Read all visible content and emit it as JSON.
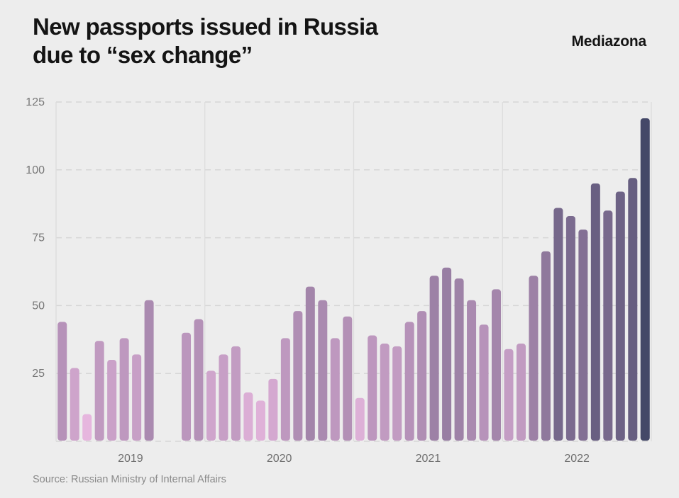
{
  "header": {
    "title_line1": "New passports issued in Russia",
    "title_line2": "due to “sex change”",
    "brand": "Mediazona"
  },
  "footer": {
    "source": "Source: Russian Ministry of Internal Affairs"
  },
  "chart_data": {
    "type": "bar",
    "title": "New passports issued in Russia due to “sex change”",
    "xlabel": "",
    "ylabel": "",
    "ylim": [
      0,
      125
    ],
    "yticks": [
      25,
      50,
      75,
      100,
      125
    ],
    "grid": true,
    "legend": "none",
    "color_scale": {
      "low": "#e6b6de",
      "mid": "#a888ae",
      "high": "#444868"
    },
    "years": [
      "2019",
      "2020",
      "2021",
      "2022"
    ],
    "categories": [
      "2019-01",
      "2019-02",
      "2019-03",
      "2019-04",
      "2019-05",
      "2019-06",
      "2019-07",
      "2019-08",
      "2019-09",
      "2019-10",
      "2019-11",
      "2019-12",
      "2020-01",
      "2020-02",
      "2020-03",
      "2020-04",
      "2020-05",
      "2020-06",
      "2020-07",
      "2020-08",
      "2020-09",
      "2020-10",
      "2020-11",
      "2020-12",
      "2021-01",
      "2021-02",
      "2021-03",
      "2021-04",
      "2021-05",
      "2021-06",
      "2021-07",
      "2021-08",
      "2021-09",
      "2021-10",
      "2021-11",
      "2021-12",
      "2022-01",
      "2022-02",
      "2022-03",
      "2022-04",
      "2022-05",
      "2022-06",
      "2022-07",
      "2022-08",
      "2022-09",
      "2022-10",
      "2022-11",
      "2022-12"
    ],
    "values": [
      44,
      27,
      10,
      37,
      30,
      38,
      32,
      52,
      null,
      null,
      40,
      45,
      26,
      32,
      35,
      18,
      15,
      23,
      38,
      48,
      57,
      52,
      38,
      46,
      16,
      39,
      36,
      35,
      44,
      48,
      61,
      64,
      60,
      52,
      43,
      56,
      34,
      36,
      61,
      70,
      86,
      83,
      78,
      95,
      85,
      92,
      97,
      119
    ]
  }
}
